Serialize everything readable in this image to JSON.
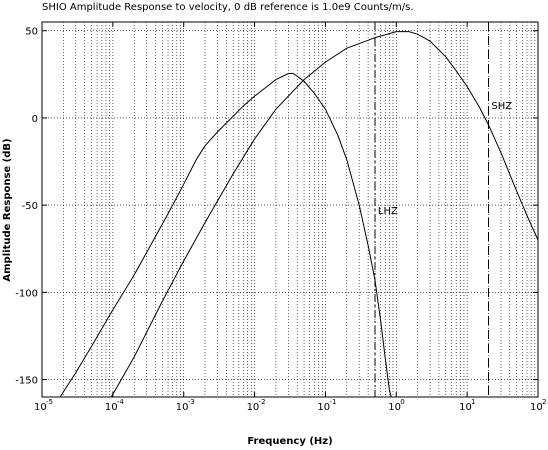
{
  "chart_data": {
    "type": "line",
    "title": "SHIO Amplitude Response to velocity, 0 dB reference is 1.0e9 Counts/m/s.",
    "xlabel": "Frequency (Hz)",
    "ylabel": "Amplitude Response (dB)",
    "x_scale": "log",
    "xlim": [
      1e-05,
      100
    ],
    "ylim": [
      -160,
      55
    ],
    "grid": true,
    "x_ticks": [
      {
        "base": "10",
        "exp": "-5",
        "value": 1e-05
      },
      {
        "base": "10",
        "exp": "-4",
        "value": 0.0001
      },
      {
        "base": "10",
        "exp": "-3",
        "value": 0.001
      },
      {
        "base": "10",
        "exp": "-2",
        "value": 0.01
      },
      {
        "base": "10",
        "exp": "-1",
        "value": 0.1
      },
      {
        "base": "10",
        "exp": "0",
        "value": 1
      },
      {
        "base": "10",
        "exp": "1",
        "value": 10
      },
      {
        "base": "10",
        "exp": "2",
        "value": 100
      }
    ],
    "y_ticks": [
      {
        "label": "50",
        "value": 50
      },
      {
        "label": "0",
        "value": 0
      },
      {
        "label": "-50",
        "value": -50
      },
      {
        "label": "-100",
        "value": -100
      },
      {
        "label": "-150",
        "value": -150
      }
    ],
    "series": [
      {
        "name": "LHZ",
        "style": "solid",
        "points": [
          [
            1.8e-05,
            -162
          ],
          [
            3e-05,
            -146
          ],
          [
            5e-05,
            -131
          ],
          [
            0.0001,
            -110
          ],
          [
            0.0002,
            -90
          ],
          [
            0.0004,
            -68
          ],
          [
            0.0007,
            -50
          ],
          [
            0.001,
            -38
          ],
          [
            0.0015,
            -24
          ],
          [
            0.002,
            -16
          ],
          [
            0.003,
            -8
          ],
          [
            0.005,
            1
          ],
          [
            0.007,
            7
          ],
          [
            0.01,
            12.5
          ],
          [
            0.015,
            18
          ],
          [
            0.02,
            22
          ],
          [
            0.03,
            25.5
          ],
          [
            0.035,
            25.5
          ],
          [
            0.04,
            24
          ],
          [
            0.05,
            21
          ],
          [
            0.07,
            14
          ],
          [
            0.1,
            5
          ],
          [
            0.15,
            -10
          ],
          [
            0.2,
            -24
          ],
          [
            0.3,
            -50
          ],
          [
            0.4,
            -73
          ],
          [
            0.5,
            -93
          ],
          [
            0.6,
            -116
          ],
          [
            0.7,
            -138
          ],
          [
            0.8,
            -156
          ],
          [
            0.85,
            -162
          ]
        ]
      },
      {
        "name": "SHZ",
        "style": "solid",
        "points": [
          [
            9.5e-05,
            -162
          ],
          [
            0.0002,
            -137
          ],
          [
            0.0005,
            -105
          ],
          [
            0.001,
            -82
          ],
          [
            0.002,
            -60
          ],
          [
            0.005,
            -32
          ],
          [
            0.01,
            -12
          ],
          [
            0.02,
            5
          ],
          [
            0.05,
            22
          ],
          [
            0.1,
            32
          ],
          [
            0.2,
            40
          ],
          [
            0.5,
            46
          ],
          [
            1,
            49.5
          ],
          [
            1.5,
            49.5
          ],
          [
            2,
            48
          ],
          [
            3,
            44
          ],
          [
            5,
            35
          ],
          [
            7,
            27
          ],
          [
            10,
            18
          ],
          [
            15,
            6
          ],
          [
            20,
            -4
          ],
          [
            30,
            -20
          ],
          [
            50,
            -42
          ],
          [
            70,
            -56
          ],
          [
            100,
            -70
          ]
        ]
      }
    ],
    "reference_lines": [
      {
        "x": 0.5,
        "style": "dash-dot",
        "series": "LHZ"
      },
      {
        "x": 20,
        "style": "dashed",
        "series": "SHZ"
      }
    ],
    "annotations": [
      {
        "text": "SHZ",
        "x": 22,
        "y": 5
      },
      {
        "text": "LHZ",
        "x": 0.55,
        "y": -55
      }
    ]
  }
}
